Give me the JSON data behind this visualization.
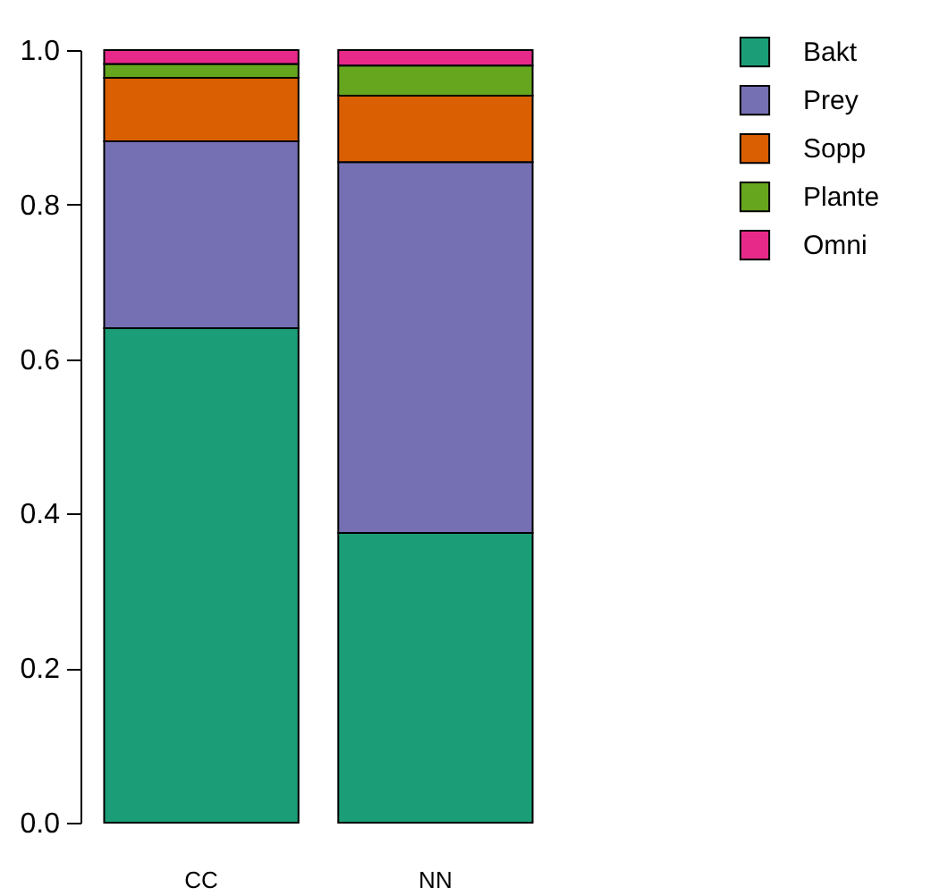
{
  "chart_data": {
    "type": "bar",
    "stacked": true,
    "categories": [
      "CC",
      "NN"
    ],
    "series": [
      {
        "name": "Bakt",
        "color": "#1b9e77",
        "values": [
          0.64,
          0.375
        ]
      },
      {
        "name": "Prey",
        "color": "#7570b3",
        "values": [
          0.242,
          0.48
        ]
      },
      {
        "name": "Sopp",
        "color": "#d95f02",
        "values": [
          0.082,
          0.086
        ]
      },
      {
        "name": "Plante",
        "color": "#66a61e",
        "values": [
          0.018,
          0.039
        ]
      },
      {
        "name": "Omni",
        "color": "#e7298a",
        "values": [
          0.018,
          0.02
        ]
      }
    ],
    "ylim": [
      0,
      1
    ],
    "yticks": [
      {
        "value": 0,
        "label": "0.0"
      },
      {
        "value": 0.2,
        "label": "0.2"
      },
      {
        "value": 0.4,
        "label": "0.4"
      },
      {
        "value": 0.6,
        "label": "0.6"
      },
      {
        "value": 0.8,
        "label": "0.8"
      },
      {
        "value": 1,
        "label": "1.0"
      }
    ],
    "grid": false,
    "legend": "top right"
  }
}
